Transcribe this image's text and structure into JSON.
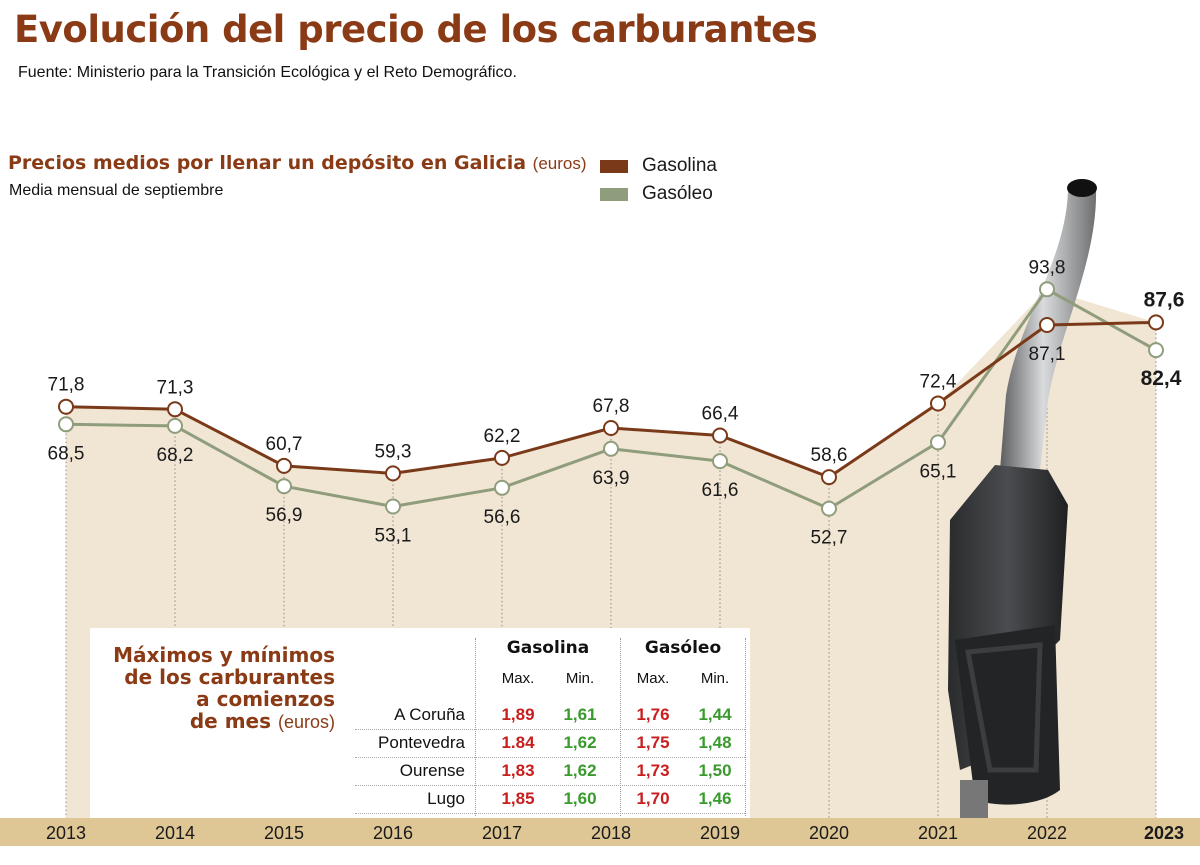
{
  "title": "Evolución del precio de los carburantes",
  "source": "Fuente: Ministerio para la Transición Ecológica y el Reto Demográfico.",
  "subtitle": "Precios medios por llenar un depósito en Galicia",
  "subtitle_unit": "(euros)",
  "note": "Media mensual de septiembre",
  "colors": {
    "title": "#8a3b15",
    "gasolina": "#7a3a1a",
    "gasoleo": "#8f9d7c",
    "area": "#f1e6d4",
    "axis_band": "#dfc795",
    "max": "#c81e1e",
    "min": "#3a9a2e"
  },
  "chart_data": {
    "type": "line",
    "categories": [
      "2013",
      "2014",
      "2015",
      "2016",
      "2017",
      "2018",
      "2019",
      "2020",
      "2021",
      "2022",
      "2023"
    ],
    "series": [
      {
        "name": "Gasolina",
        "values": [
          71.8,
          71.3,
          60.7,
          59.3,
          62.2,
          67.8,
          66.4,
          58.6,
          72.4,
          87.1,
          87.6
        ],
        "labels": [
          "71,8",
          "71,3",
          "60,7",
          "59,3",
          "62,2",
          "67,8",
          "66,4",
          "58,6",
          "72,4",
          "87,1",
          "87,6"
        ]
      },
      {
        "name": "Gasóleo",
        "values": [
          68.5,
          68.2,
          56.9,
          53.1,
          56.6,
          63.9,
          61.6,
          52.7,
          65.1,
          93.8,
          82.4
        ],
        "labels": [
          "68,5",
          "68,2",
          "56,9",
          "53,1",
          "56,6",
          "63,9",
          "61,6",
          "52,7",
          "65,1",
          "93,8",
          "82,4"
        ]
      }
    ],
    "legend": "top-center",
    "highlight_category": "2023"
  },
  "table": {
    "title_lines": [
      "Máximos y mínimos",
      "de los carburantes",
      "a comienzos",
      "de mes"
    ],
    "unit": "(euros)",
    "groups": [
      "Gasolina",
      "Gasóleo"
    ],
    "subheaders": [
      "Max.",
      "Min.",
      "Max.",
      "Min."
    ],
    "rows": [
      {
        "province": "A Coruña",
        "values": [
          "1,89",
          "1,61",
          "1,76",
          "1,44"
        ]
      },
      {
        "province": "Pontevedra",
        "values": [
          "1.84",
          "1,62",
          "1,75",
          "1,48"
        ]
      },
      {
        "province": "Ourense",
        "values": [
          "1,83",
          "1,62",
          "1,73",
          "1,50"
        ]
      },
      {
        "province": "Lugo",
        "values": [
          "1,85",
          "1,60",
          "1,70",
          "1,46"
        ]
      }
    ]
  }
}
